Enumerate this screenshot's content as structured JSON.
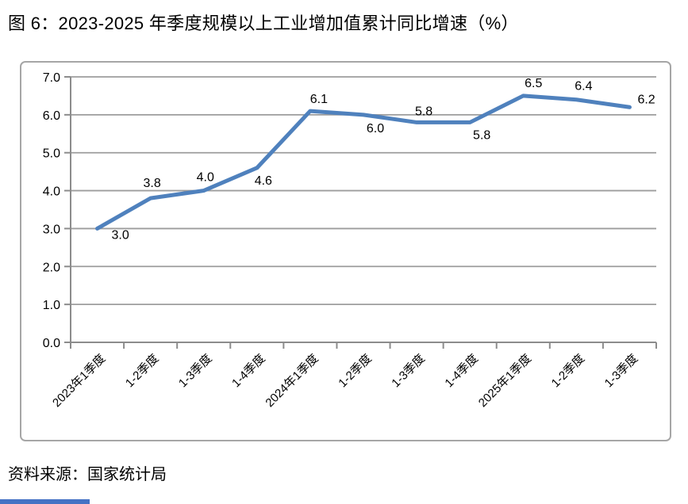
{
  "figure": {
    "title": "图 6：2023-2025 年季度规模以上工业增加值累计同比增速（%）",
    "source": "资料来源：国家统计局"
  },
  "chart_data": {
    "type": "line",
    "title": "2023-2025 年季度规模以上工业增加值累计同比增速（%）",
    "categories": [
      "2023年1季度",
      "1-2季度",
      "1-3季度",
      "1-4季度",
      "2024年1季度",
      "1-2季度",
      "1-3季度",
      "1-4季度",
      "2025年1季度",
      "1-2季度",
      "1-3季度"
    ],
    "values": [
      3.0,
      3.8,
      4.0,
      4.6,
      6.1,
      6.0,
      5.8,
      5.8,
      6.5,
      6.4,
      6.2
    ],
    "data_labels": [
      "3.0",
      "3.8",
      "4.0",
      "4.6",
      "6.1",
      "6.0",
      "5.8",
      "5.8",
      "6.5",
      "6.4",
      "6.2"
    ],
    "xlabel": "",
    "ylabel": "",
    "ylim": [
      0.0,
      7.0
    ],
    "ytick_step": 1.0,
    "ytick_labels": [
      "0.0",
      "1.0",
      "2.0",
      "3.0",
      "4.0",
      "5.0",
      "6.0",
      "7.0"
    ],
    "grid": true,
    "legend": false,
    "colors": {
      "line": "#4f81bd",
      "gridline": "#9d9d9d",
      "axis": "#8c8c8c",
      "labels": "#000000",
      "chart_border": "#a6a6a6",
      "accent_bar": "#4472c4"
    }
  }
}
